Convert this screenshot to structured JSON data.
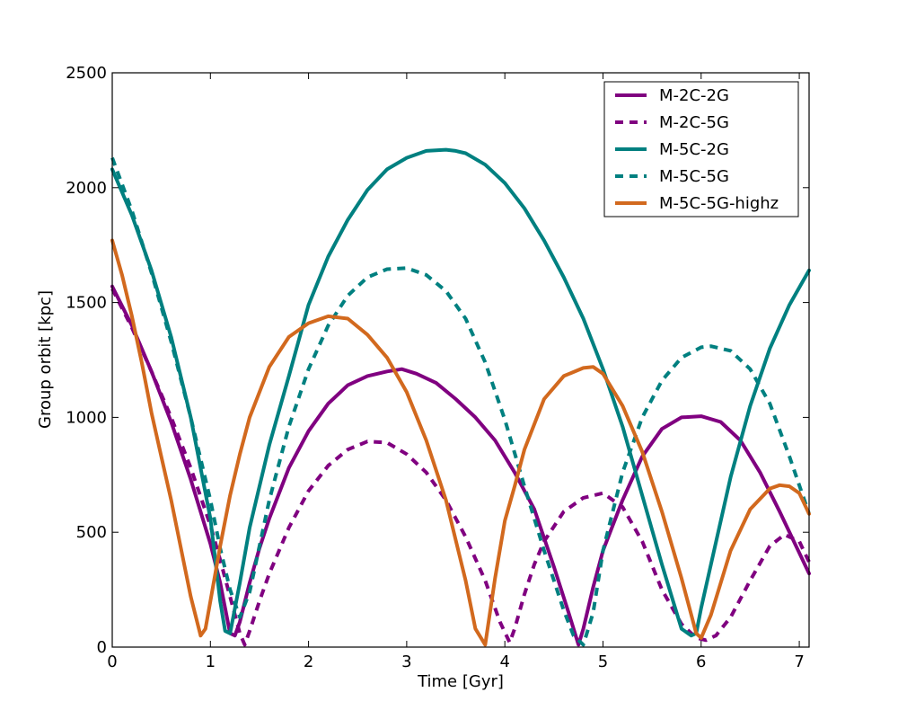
{
  "chart_data": {
    "type": "line",
    "title": "",
    "xlabel": "Time [Gyr]",
    "ylabel": "Group orbit [kpc]",
    "xlim": [
      0,
      7.1
    ],
    "ylim": [
      0,
      2500
    ],
    "xticks": [
      0,
      1,
      2,
      3,
      4,
      5,
      6,
      7
    ],
    "yticks": [
      0,
      500,
      1000,
      1500,
      2000,
      2500
    ],
    "xtick_labels": [
      "0",
      "1",
      "2",
      "3",
      "4",
      "5",
      "6",
      "7"
    ],
    "ytick_labels": [
      "0",
      "500",
      "1000",
      "1500",
      "2000",
      "2500"
    ],
    "grid": false,
    "legend_position": "top-right",
    "series": [
      {
        "name": "M-2C-2G",
        "color": "#800080",
        "style": "solid",
        "x": [
          0,
          0.2,
          0.4,
          0.6,
          0.8,
          1.0,
          1.1,
          1.2,
          1.25,
          1.3,
          1.4,
          1.5,
          1.6,
          1.8,
          2.0,
          2.2,
          2.4,
          2.6,
          2.8,
          2.95,
          3.1,
          3.3,
          3.5,
          3.7,
          3.9,
          4.1,
          4.3,
          4.5,
          4.65,
          4.75,
          4.8,
          4.9,
          5.0,
          5.2,
          5.4,
          5.6,
          5.8,
          6.0,
          6.2,
          6.4,
          6.6,
          6.8,
          7.0,
          7.1
        ],
        "y": [
          1570,
          1400,
          1200,
          980,
          730,
          450,
          280,
          60,
          50,
          110,
          280,
          430,
          560,
          780,
          940,
          1060,
          1140,
          1180,
          1200,
          1210,
          1190,
          1150,
          1080,
          1000,
          900,
          760,
          600,
          350,
          150,
          10,
          80,
          260,
          420,
          640,
          830,
          950,
          1000,
          1005,
          980,
          900,
          760,
          590,
          410,
          320
        ]
      },
      {
        "name": "M-2C-5G",
        "color": "#800080",
        "style": "dashed",
        "x": [
          0,
          0.2,
          0.4,
          0.6,
          0.8,
          1.0,
          1.1,
          1.2,
          1.3,
          1.35,
          1.4,
          1.5,
          1.6,
          1.8,
          2.0,
          2.2,
          2.4,
          2.6,
          2.8,
          3.0,
          3.2,
          3.4,
          3.6,
          3.8,
          3.95,
          4.05,
          4.1,
          4.2,
          4.3,
          4.4,
          4.6,
          4.8,
          5.0,
          5.2,
          5.4,
          5.6,
          5.8,
          5.95,
          6.05,
          6.15,
          6.3,
          6.5,
          6.7,
          6.85,
          7.0,
          7.1
        ],
        "y": [
          1560,
          1390,
          1200,
          1000,
          780,
          530,
          380,
          220,
          60,
          10,
          70,
          200,
          320,
          520,
          680,
          790,
          860,
          895,
          890,
          840,
          760,
          640,
          480,
          290,
          110,
          20,
          80,
          230,
          360,
          460,
          590,
          650,
          670,
          610,
          460,
          250,
          100,
          40,
          30,
          50,
          130,
          290,
          440,
          490,
          460,
          370
        ]
      },
      {
        "name": "M-5C-2G",
        "color": "#008080",
        "style": "solid",
        "x": [
          0,
          0.2,
          0.4,
          0.6,
          0.8,
          1.0,
          1.1,
          1.15,
          1.2,
          1.3,
          1.4,
          1.6,
          1.8,
          2.0,
          2.2,
          2.4,
          2.6,
          2.8,
          3.0,
          3.2,
          3.4,
          3.5,
          3.6,
          3.8,
          4.0,
          4.2,
          4.4,
          4.6,
          4.8,
          5.0,
          5.2,
          5.4,
          5.6,
          5.8,
          5.9,
          5.95,
          6.0,
          6.1,
          6.3,
          6.5,
          6.7,
          6.9,
          7.1
        ],
        "y": [
          2080,
          1880,
          1640,
          1350,
          1000,
          560,
          200,
          70,
          60,
          280,
          520,
          880,
          1180,
          1490,
          1700,
          1860,
          1990,
          2080,
          2130,
          2160,
          2165,
          2160,
          2150,
          2100,
          2020,
          1910,
          1770,
          1610,
          1430,
          1210,
          960,
          660,
          360,
          80,
          50,
          60,
          170,
          360,
          740,
          1050,
          1300,
          1490,
          1640
        ]
      },
      {
        "name": "M-5C-5G",
        "color": "#008080",
        "style": "dashed",
        "x": [
          0,
          0.2,
          0.4,
          0.6,
          0.8,
          1.0,
          1.1,
          1.2,
          1.3,
          1.4,
          1.6,
          1.8,
          2.0,
          2.2,
          2.4,
          2.6,
          2.8,
          3.0,
          3.2,
          3.4,
          3.6,
          3.8,
          4.0,
          4.2,
          4.4,
          4.6,
          4.7,
          4.8,
          4.9,
          5.0,
          5.2,
          5.4,
          5.6,
          5.8,
          6.0,
          6.1,
          6.3,
          6.5,
          6.7,
          6.9,
          7.1
        ],
        "y": [
          2130,
          1900,
          1630,
          1330,
          1000,
          640,
          430,
          250,
          130,
          240,
          640,
          960,
          1210,
          1400,
          1530,
          1610,
          1645,
          1650,
          1620,
          1550,
          1430,
          1240,
          990,
          700,
          420,
          160,
          50,
          10,
          150,
          420,
          760,
          1000,
          1160,
          1260,
          1305,
          1310,
          1290,
          1210,
          1060,
          830,
          580
        ]
      },
      {
        "name": "M-5C-5G-highz",
        "color": "#D2691E",
        "style": "solid",
        "x": [
          0,
          0.1,
          0.2,
          0.3,
          0.4,
          0.5,
          0.6,
          0.7,
          0.8,
          0.9,
          0.95,
          1.0,
          1.1,
          1.2,
          1.3,
          1.4,
          1.6,
          1.8,
          2.0,
          2.2,
          2.4,
          2.6,
          2.8,
          3.0,
          3.2,
          3.4,
          3.6,
          3.7,
          3.8,
          3.9,
          4.0,
          4.1,
          4.2,
          4.4,
          4.6,
          4.8,
          4.9,
          5.0,
          5.2,
          5.4,
          5.6,
          5.8,
          5.95,
          6.0,
          6.1,
          6.3,
          6.5,
          6.7,
          6.8,
          6.9,
          7.0,
          7.1
        ],
        "y": [
          1770,
          1620,
          1440,
          1240,
          1020,
          830,
          640,
          430,
          220,
          50,
          80,
          200,
          440,
          660,
          840,
          1000,
          1220,
          1350,
          1410,
          1440,
          1430,
          1360,
          1260,
          1110,
          900,
          640,
          290,
          80,
          10,
          300,
          550,
          700,
          860,
          1080,
          1180,
          1215,
          1220,
          1190,
          1050,
          850,
          590,
          300,
          60,
          40,
          140,
          420,
          600,
          690,
          705,
          700,
          670,
          580
        ]
      }
    ]
  }
}
